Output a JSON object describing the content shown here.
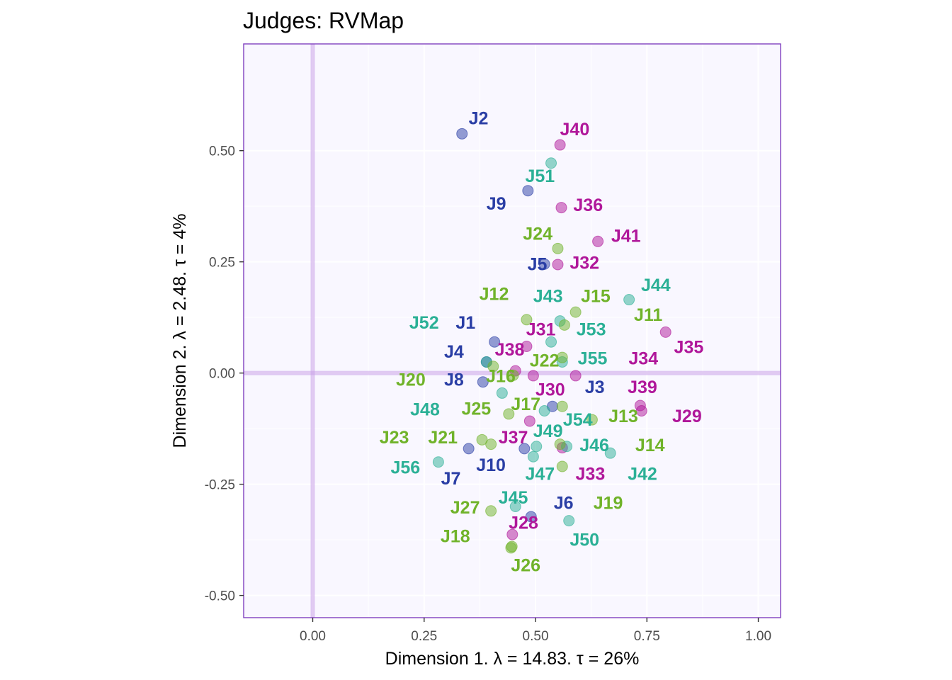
{
  "chart_data": {
    "type": "scatter",
    "title": "Judges: RVMap",
    "xlabel": "Dimension 1.   λ = 14.83.  τ = 26%",
    "ylabel": "Dimension 2.   λ = 2.48.  τ = 4%",
    "xlim": [
      -0.155,
      1.05
    ],
    "ylim": [
      -0.55,
      0.74
    ],
    "xticks": [
      0.0,
      0.25,
      0.5,
      0.75,
      1.0
    ],
    "xtick_labels": [
      "0.00",
      "0.25",
      "0.50",
      "0.75",
      "1.00"
    ],
    "yticks": [
      -0.5,
      -0.25,
      0.0,
      0.25,
      0.5
    ],
    "ytick_labels": [
      "-0.50",
      "-0.25",
      "0.00",
      "0.25",
      "0.50"
    ],
    "grid": true,
    "groups": {
      "blue": "#2a3ea5",
      "magenta": "#b0179a",
      "teal": "#2bb096",
      "green": "#70b32a"
    },
    "points": [
      {
        "label": "J2",
        "x": 0.335,
        "y": 0.538,
        "lx": 0.372,
        "ly": 0.57,
        "group": "blue"
      },
      {
        "label": "J9",
        "x": 0.483,
        "y": 0.41,
        "lx": 0.412,
        "ly": 0.378,
        "group": "blue"
      },
      {
        "label": "J5",
        "x": 0.52,
        "y": 0.245,
        "lx": 0.504,
        "ly": 0.242,
        "group": "blue"
      },
      {
        "label": "J1",
        "x": 0.408,
        "y": 0.07,
        "lx": 0.343,
        "ly": 0.11,
        "group": "blue"
      },
      {
        "label": "J4",
        "x": 0.39,
        "y": 0.025,
        "lx": 0.317,
        "ly": 0.045,
        "group": "blue"
      },
      {
        "label": "J8",
        "x": 0.382,
        "y": -0.02,
        "lx": 0.317,
        "ly": -0.018,
        "group": "blue"
      },
      {
        "label": "J3",
        "x": 0.538,
        "y": -0.075,
        "lx": 0.633,
        "ly": -0.035,
        "group": "blue"
      },
      {
        "label": "J7",
        "x": 0.35,
        "y": -0.17,
        "lx": 0.31,
        "ly": -0.24,
        "group": "blue"
      },
      {
        "label": "J10",
        "x": 0.475,
        "y": -0.17,
        "lx": 0.4,
        "ly": -0.21,
        "group": "blue"
      },
      {
        "label": "J6",
        "x": 0.49,
        "y": -0.323,
        "lx": 0.563,
        "ly": -0.295,
        "group": "blue"
      },
      {
        "label": "J40",
        "x": 0.555,
        "y": 0.513,
        "lx": 0.588,
        "ly": 0.545,
        "group": "magenta"
      },
      {
        "label": "J36",
        "x": 0.558,
        "y": 0.372,
        "lx": 0.618,
        "ly": 0.375,
        "group": "magenta"
      },
      {
        "label": "J41",
        "x": 0.64,
        "y": 0.296,
        "lx": 0.703,
        "ly": 0.305,
        "group": "magenta"
      },
      {
        "label": "J32",
        "x": 0.55,
        "y": 0.244,
        "lx": 0.61,
        "ly": 0.245,
        "group": "magenta"
      },
      {
        "label": "J31",
        "x": 0.48,
        "y": 0.06,
        "lx": 0.512,
        "ly": 0.095,
        "group": "magenta"
      },
      {
        "label": "J38",
        "x": 0.455,
        "y": 0.005,
        "lx": 0.442,
        "ly": 0.05,
        "group": "magenta"
      },
      {
        "label": "J30",
        "x": 0.495,
        "y": -0.006,
        "lx": 0.533,
        "ly": -0.04,
        "group": "magenta"
      },
      {
        "label": "J34",
        "x": 0.59,
        "y": -0.006,
        "lx": 0.742,
        "ly": 0.03,
        "group": "magenta"
      },
      {
        "label": "J35",
        "x": 0.792,
        "y": 0.092,
        "lx": 0.844,
        "ly": 0.055,
        "group": "magenta"
      },
      {
        "label": "J39",
        "x": 0.735,
        "y": -0.073,
        "lx": 0.74,
        "ly": -0.035,
        "group": "magenta"
      },
      {
        "label": "J29",
        "x": 0.738,
        "y": -0.085,
        "lx": 0.84,
        "ly": -0.1,
        "group": "magenta"
      },
      {
        "label": "J37",
        "x": 0.487,
        "y": -0.108,
        "lx": 0.45,
        "ly": -0.148,
        "group": "magenta"
      },
      {
        "label": "J33",
        "x": 0.56,
        "y": -0.168,
        "lx": 0.623,
        "ly": -0.23,
        "group": "magenta"
      },
      {
        "label": "J28",
        "x": 0.448,
        "y": -0.363,
        "lx": 0.473,
        "ly": -0.34,
        "group": "magenta"
      },
      {
        "label": "J51",
        "x": 0.535,
        "y": 0.472,
        "lx": 0.51,
        "ly": 0.44,
        "group": "teal"
      },
      {
        "label": "J44",
        "x": 0.71,
        "y": 0.165,
        "lx": 0.77,
        "ly": 0.195,
        "group": "teal"
      },
      {
        "label": "J43",
        "x": 0.555,
        "y": 0.117,
        "lx": 0.528,
        "ly": 0.17,
        "group": "teal"
      },
      {
        "label": "J53",
        "x": 0.535,
        "y": 0.07,
        "lx": 0.625,
        "ly": 0.095,
        "group": "teal"
      },
      {
        "label": "J52",
        "x": 0.39,
        "y": 0.025,
        "lx": 0.25,
        "ly": 0.11,
        "group": "teal"
      },
      {
        "label": "J55",
        "x": 0.56,
        "y": 0.025,
        "lx": 0.628,
        "ly": 0.03,
        "group": "teal"
      },
      {
        "label": "J48",
        "x": 0.425,
        "y": -0.045,
        "lx": 0.252,
        "ly": -0.085,
        "group": "teal"
      },
      {
        "label": "J54",
        "x": 0.52,
        "y": -0.085,
        "lx": 0.595,
        "ly": -0.108,
        "group": "teal"
      },
      {
        "label": "J49",
        "x": 0.502,
        "y": -0.165,
        "lx": 0.528,
        "ly": -0.133,
        "group": "teal"
      },
      {
        "label": "J46",
        "x": 0.57,
        "y": -0.165,
        "lx": 0.632,
        "ly": -0.165,
        "group": "teal"
      },
      {
        "label": "J47",
        "x": 0.495,
        "y": -0.188,
        "lx": 0.51,
        "ly": -0.23,
        "group": "teal"
      },
      {
        "label": "J42",
        "x": 0.668,
        "y": -0.18,
        "lx": 0.74,
        "ly": -0.23,
        "group": "teal"
      },
      {
        "label": "J56",
        "x": 0.282,
        "y": -0.2,
        "lx": 0.208,
        "ly": -0.215,
        "group": "teal"
      },
      {
        "label": "J45",
        "x": 0.455,
        "y": -0.3,
        "lx": 0.45,
        "ly": -0.283,
        "group": "teal"
      },
      {
        "label": "J50",
        "x": 0.575,
        "y": -0.332,
        "lx": 0.61,
        "ly": -0.378,
        "group": "teal"
      },
      {
        "label": "J24",
        "x": 0.55,
        "y": 0.28,
        "lx": 0.505,
        "ly": 0.31,
        "group": "green"
      },
      {
        "label": "J12",
        "x": 0.48,
        "y": 0.12,
        "lx": 0.407,
        "ly": 0.175,
        "group": "green"
      },
      {
        "label": "J15",
        "x": 0.59,
        "y": 0.137,
        "lx": 0.635,
        "ly": 0.17,
        "group": "green"
      },
      {
        "label": "J11",
        "x": 0.565,
        "y": 0.108,
        "lx": 0.753,
        "ly": 0.128,
        "group": "green"
      },
      {
        "label": "J22",
        "x": 0.56,
        "y": 0.035,
        "lx": 0.52,
        "ly": 0.025,
        "group": "green"
      },
      {
        "label": "J16",
        "x": 0.45,
        "y": -0.005,
        "lx": 0.422,
        "ly": -0.01,
        "group": "green"
      },
      {
        "label": "J20",
        "x": 0.405,
        "y": 0.015,
        "lx": 0.22,
        "ly": -0.018,
        "group": "green"
      },
      {
        "label": "J25",
        "x": 0.44,
        "y": -0.092,
        "lx": 0.367,
        "ly": -0.083,
        "group": "green"
      },
      {
        "label": "J17",
        "x": 0.56,
        "y": -0.075,
        "lx": 0.478,
        "ly": -0.073,
        "group": "green"
      },
      {
        "label": "J13",
        "x": 0.627,
        "y": -0.105,
        "lx": 0.697,
        "ly": -0.1,
        "group": "green"
      },
      {
        "label": "J23",
        "x": 0.38,
        "y": -0.15,
        "lx": 0.183,
        "ly": -0.148,
        "group": "green"
      },
      {
        "label": "J21",
        "x": 0.4,
        "y": -0.16,
        "lx": 0.292,
        "ly": -0.148,
        "group": "green"
      },
      {
        "label": "J14",
        "x": 0.555,
        "y": -0.16,
        "lx": 0.757,
        "ly": -0.165,
        "group": "green"
      },
      {
        "label": "J19",
        "x": 0.56,
        "y": -0.21,
        "lx": 0.663,
        "ly": -0.295,
        "group": "green"
      },
      {
        "label": "J27",
        "x": 0.4,
        "y": -0.31,
        "lx": 0.342,
        "ly": -0.305,
        "group": "green"
      },
      {
        "label": "J18",
        "x": 0.445,
        "y": -0.393,
        "lx": 0.32,
        "ly": -0.37,
        "group": "green"
      },
      {
        "label": "J26",
        "x": 0.447,
        "y": -0.39,
        "lx": 0.478,
        "ly": -0.435,
        "group": "green"
      }
    ]
  }
}
